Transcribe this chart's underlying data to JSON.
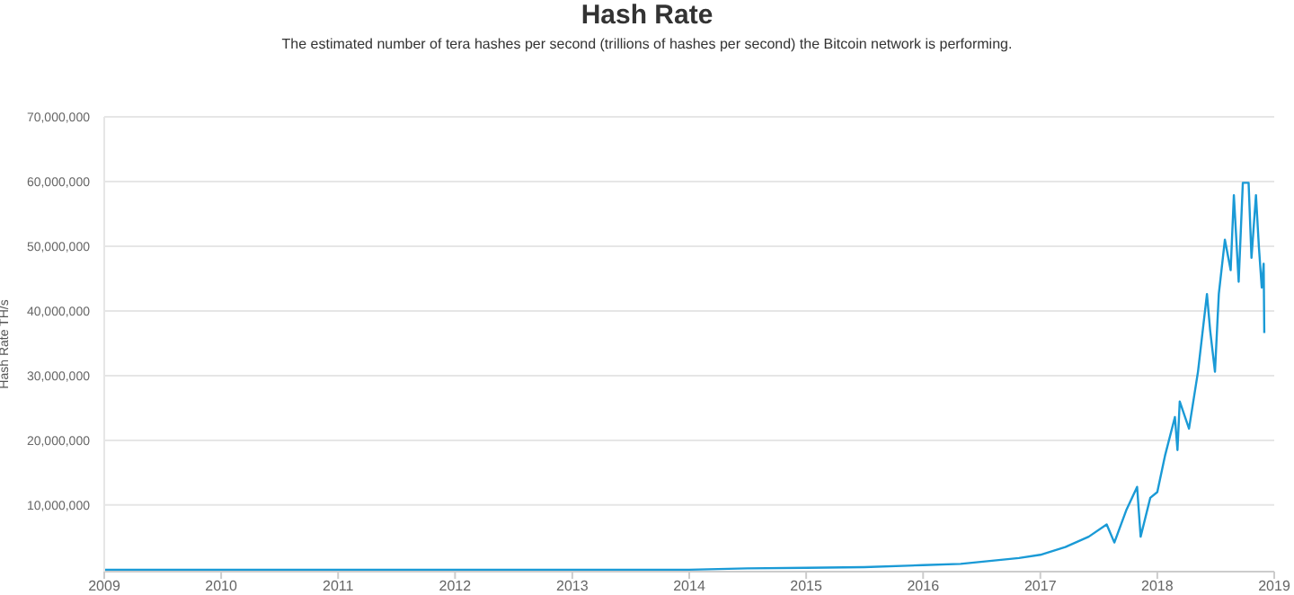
{
  "chart_data": {
    "type": "line",
    "title": "Hash Rate",
    "subtitle": "The estimated number of tera hashes per second (trillions of hashes per second) the Bitcoin network is performing.",
    "ylabel": "Hash Rate TH/s",
    "x": [
      "2009-01-03",
      "2010-01-01",
      "2011-01-01",
      "2012-01-01",
      "2013-01-01",
      "2014-01-01",
      "2014-07-01",
      "2015-01-01",
      "2015-07-01",
      "2016-01-01",
      "2016-04-27",
      "2016-10-26",
      "2017-01-01",
      "2017-03-20",
      "2017-06-01",
      "2017-07-27",
      "2017-08-20",
      "2017-09-27",
      "2017-10-30",
      "2017-11-10",
      "2017-12-10",
      "2018-01-01",
      "2018-01-25",
      "2018-02-25",
      "2018-03-05",
      "2018-03-12",
      "2018-04-10",
      "2018-05-08",
      "2018-06-05",
      "2018-06-15",
      "2018-06-30",
      "2018-07-12",
      "2018-07-31",
      "2018-08-18",
      "2018-08-28",
      "2018-09-12",
      "2018-09-25",
      "2018-10-13",
      "2018-10-22",
      "2018-11-05",
      "2018-11-14",
      "2018-11-23",
      "2018-11-29",
      "2018-12-01"
    ],
    "series": [
      {
        "color": "#1a9ad6",
        "values": [
          0,
          0,
          0,
          0,
          0,
          0,
          200000,
          300000,
          400000,
          700000,
          900000,
          1800000,
          2300000,
          3500000,
          5100000,
          7000000,
          4200000,
          9300000,
          12800000,
          5100000,
          11100000,
          12000000,
          17600000,
          23600000,
          18500000,
          26000000,
          21800000,
          30600000,
          42600000,
          37000000,
          30600000,
          42600000,
          51000000,
          46300000,
          57900000,
          44500000,
          59800000,
          59800000,
          48200000,
          57900000,
          50000000,
          43600000,
          47300000,
          36600000
        ]
      }
    ],
    "xlim": [
      "2009",
      "2019"
    ],
    "xticks": [
      "2009",
      "2010",
      "2011",
      "2012",
      "2013",
      "2014",
      "2015",
      "2016",
      "2017",
      "2018",
      "2019"
    ],
    "ylim": [
      -300000,
      70000000
    ],
    "yticks": [
      {
        "value": 10000000,
        "label": "10,000,000"
      },
      {
        "value": 20000000,
        "label": "20,000,000"
      },
      {
        "value": 30000000,
        "label": "30,000,000"
      },
      {
        "value": 40000000,
        "label": "40,000,000"
      },
      {
        "value": 50000000,
        "label": "50,000,000"
      },
      {
        "value": 60000000,
        "label": "60,000,000"
      },
      {
        "value": 70000000,
        "label": "70,000,000"
      }
    ],
    "grid": "y",
    "legend": false,
    "marker": "none",
    "line_style": "solid"
  }
}
